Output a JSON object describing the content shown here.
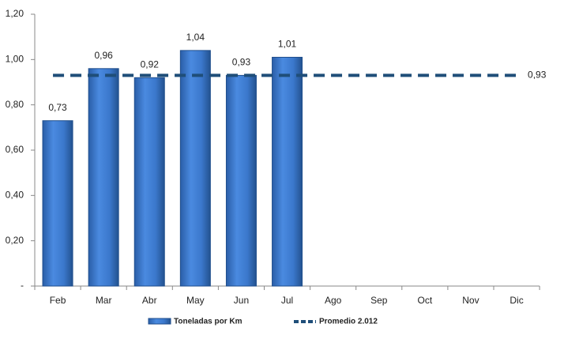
{
  "chart_data": {
    "type": "bar",
    "categories": [
      "Feb",
      "Mar",
      "Abr",
      "May",
      "Jun",
      "Jul",
      "Ago",
      "Sep",
      "Oct",
      "Nov",
      "Dic"
    ],
    "series": [
      {
        "name": "Toneladas por Km",
        "type": "bar",
        "color": "#3a7bd0",
        "values": [
          0.73,
          0.96,
          0.92,
          1.04,
          0.93,
          1.01,
          null,
          null,
          null,
          null,
          null
        ],
        "value_labels": [
          "0,73",
          "0,96",
          "0,92",
          "1,04",
          "0,93",
          "1,01",
          null,
          null,
          null,
          null,
          null
        ]
      },
      {
        "name": "Promedio 2.012",
        "type": "line",
        "color": "#1f4e79",
        "values": [
          0.93,
          0.93,
          0.93,
          0.93,
          0.93,
          0.93,
          0.93,
          0.93,
          0.93,
          0.93,
          0.93
        ],
        "value_labels": [
          null,
          null,
          null,
          null,
          null,
          null,
          null,
          null,
          null,
          null,
          "0,93"
        ]
      }
    ],
    "ylim": [
      0,
      1.2
    ],
    "yticks": [
      {
        "value": 0,
        "label": "-"
      },
      {
        "value": 0.2,
        "label": "0,20"
      },
      {
        "value": 0.4,
        "label": "0,40"
      },
      {
        "value": 0.6,
        "label": "0,60"
      },
      {
        "value": 0.8,
        "label": "0,80"
      },
      {
        "value": 1,
        "label": "1,00"
      },
      {
        "value": 1.2,
        "label": "1,20"
      }
    ],
    "legend": "bottom"
  }
}
